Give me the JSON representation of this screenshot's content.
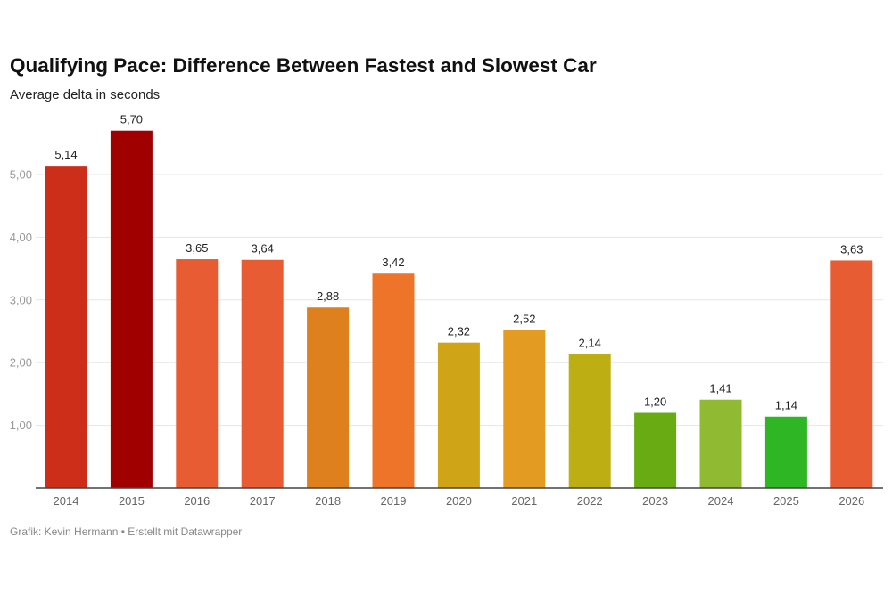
{
  "chart_data": {
    "type": "bar",
    "title": "Qualifying Pace: Difference Between Fastest and Slowest Car",
    "subtitle": "Average delta in seconds",
    "categories": [
      "2014",
      "2015",
      "2016",
      "2017",
      "2018",
      "2019",
      "2020",
      "2021",
      "2022",
      "2023",
      "2024",
      "2025",
      "2026"
    ],
    "values": [
      5.14,
      5.7,
      3.65,
      3.64,
      2.88,
      3.42,
      2.32,
      2.52,
      2.14,
      1.2,
      1.41,
      1.14,
      3.63
    ],
    "value_labels": [
      "5,14",
      "5,70",
      "3,65",
      "3,64",
      "2,88",
      "3,42",
      "2,32",
      "2,52",
      "2,14",
      "1,20",
      "1,41",
      "1,14",
      "3,63"
    ],
    "colors": [
      "#cc2e1a",
      "#a00000",
      "#e85c33",
      "#e85c33",
      "#de801e",
      "#ee742a",
      "#d0a417",
      "#e39b22",
      "#bdae14",
      "#68ab12",
      "#8fba31",
      "#2fb624",
      "#e85c33"
    ],
    "yticks": [
      1,
      2,
      3,
      4,
      5
    ],
    "ytick_labels": [
      "1,00",
      "2,00",
      "3,00",
      "4,00",
      "5,00"
    ],
    "ylim": [
      0,
      5.9
    ],
    "grid": true,
    "xlabel": "",
    "ylabel": ""
  },
  "footer": "Grafik: Kevin Hermann • Erstellt mit Datawrapper"
}
